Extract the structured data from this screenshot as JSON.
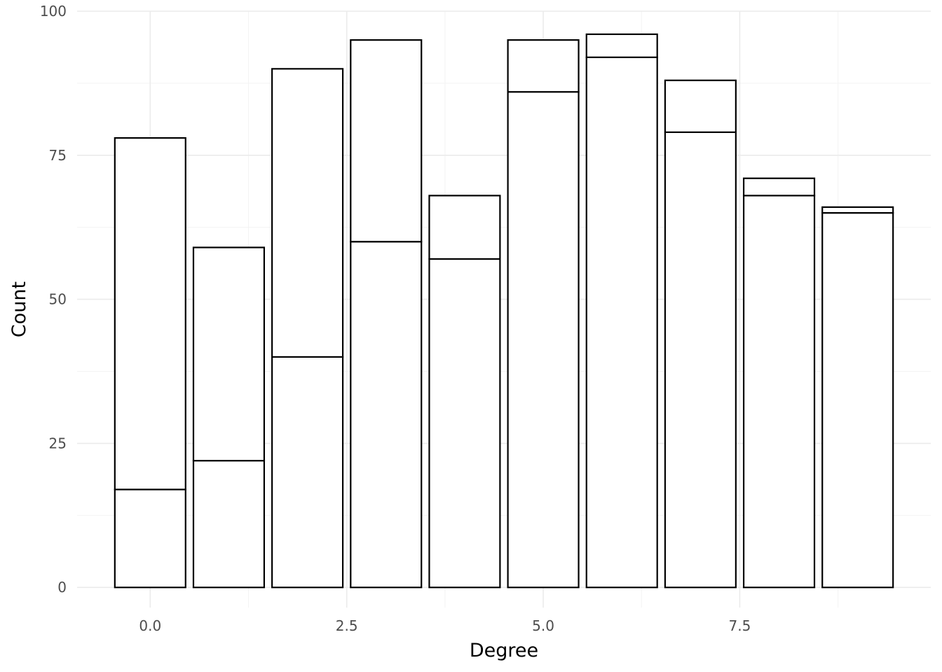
{
  "chart_data": {
    "type": "bar",
    "stacked": true,
    "title": "",
    "xlabel": "Degree",
    "ylabel": "Count",
    "x": [
      0,
      1,
      2,
      3,
      4,
      5,
      6,
      7,
      8,
      9
    ],
    "series": [
      {
        "values": [
          17,
          22,
          40,
          60,
          57,
          86,
          92,
          79,
          68,
          65
        ]
      },
      {
        "values": [
          61,
          37,
          50,
          35,
          11,
          9,
          4,
          9,
          3,
          1
        ]
      }
    ],
    "totals": [
      78,
      59,
      90,
      95,
      68,
      95,
      96,
      88,
      71,
      66
    ],
    "xlim": [
      -0.93,
      9.93
    ],
    "ylim": [
      -3.5,
      100
    ],
    "x_ticks": [
      {
        "value": 0,
        "label": "0.0"
      },
      {
        "value": 2.5,
        "label": "2.5"
      },
      {
        "value": 5,
        "label": "5.0"
      },
      {
        "value": 7.5,
        "label": "7.5"
      }
    ],
    "y_ticks": [
      {
        "value": 0,
        "label": "0"
      },
      {
        "value": 25,
        "label": "25"
      },
      {
        "value": 50,
        "label": "50"
      },
      {
        "value": 75,
        "label": "75"
      },
      {
        "value": 100,
        "label": "100"
      }
    ],
    "grid": true,
    "legend": "none",
    "colors": {
      "bar_fill": "#ffffff",
      "bar_outline": "#000000",
      "grid": "#ebebeb",
      "tick_text": "#4d4d4d"
    }
  }
}
